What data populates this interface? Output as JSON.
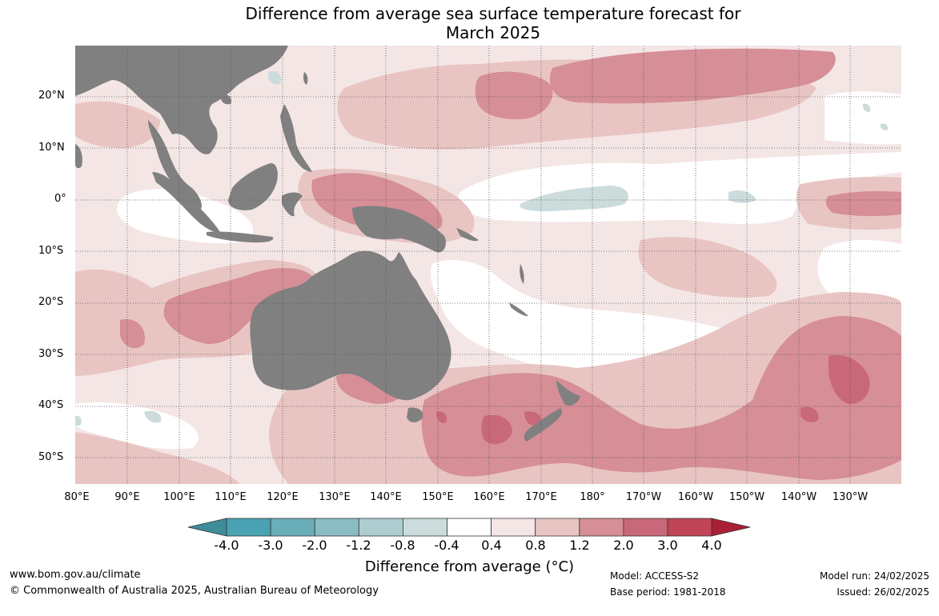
{
  "title": {
    "line1": "Difference from average sea surface temperature forecast for",
    "line2": "March 2025"
  },
  "latitude_labels": [
    "20°N",
    "10°N",
    "0°",
    "10°S",
    "20°S",
    "30°S",
    "40°S",
    "50°S"
  ],
  "longitude_labels": [
    "80°E",
    "90°E",
    "100°E",
    "110°E",
    "120°E",
    "130°E",
    "140°E",
    "150°E",
    "160°E",
    "170°E",
    "180°",
    "170°W",
    "160°W",
    "150°W",
    "140°W",
    "130°W"
  ],
  "colorbar": {
    "labels": [
      "-4.0",
      "-3.0",
      "-2.0",
      "-1.2",
      "-0.8",
      "-0.4",
      "0.4",
      "0.8",
      "1.2",
      "2.0",
      "3.0",
      "4.0"
    ],
    "colors": [
      "#3f8c9a",
      "#4aa3b3",
      "#6aaeb9",
      "#8cbcc3",
      "#adcdd0",
      "#ccdcdd",
      "#ffffff",
      "#f5e6e6",
      "#e8c5c3",
      "#d68e97",
      "#c96878",
      "#c04556",
      "#aa1f36"
    ],
    "title": "Difference from average (°C)"
  },
  "colors": {
    "land": "#808080",
    "ocean_neutral": "#ffffff",
    "warm_light": "#f5e6e6",
    "warm_mid": "#e8c5c3",
    "warm_strong": "#d68e97",
    "warm_stronger": "#c96878",
    "cool_light": "#ccdcdd"
  },
  "footer": {
    "website": "www.bom.gov.au/climate",
    "copyright": "© Commonwealth of Australia 2025, Australian Bureau of Meteorology",
    "model": "Model: ACCESS-S2",
    "base_period": "Base period: 1981-2018",
    "model_run": "Model run: 24/02/2025",
    "issued": "Issued: 26/02/2025"
  }
}
